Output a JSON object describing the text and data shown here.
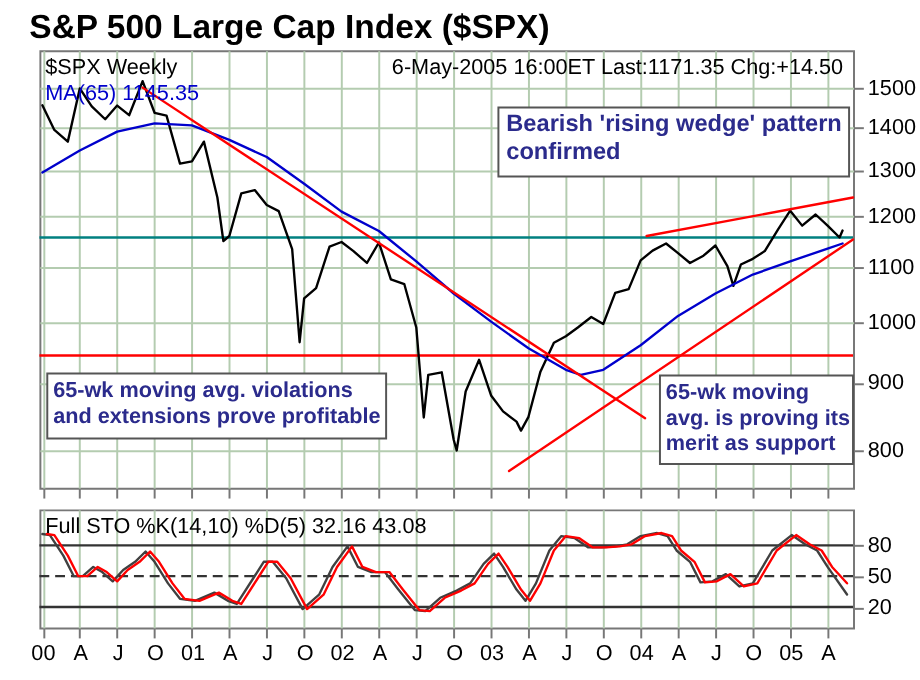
{
  "chart_data": [
    {
      "type": "line",
      "title": "S&P 500 Large Cap Index ($SPX)",
      "subtitle": "$SPX Weekly",
      "annotations": [
        "6-May-2005 16:00ET Last:1171.35 Chg:+14.50",
        "Bearish 'rising wedge' pattern\nconfirmed",
        "65-wk moving avg. violations\nand extensions prove profitable",
        "65-wk moving\navg. is proving its\nmerit as support"
      ],
      "xlim": [
        1999.98,
        2005.42
      ],
      "xticks": [
        {
          "value": 2000,
          "label": null
        },
        {
          "value": 2000.25,
          "label": null
        },
        {
          "value": 2000.5,
          "label": null
        },
        {
          "value": 2000.75,
          "label": null
        },
        {
          "value": 2001,
          "label": null
        },
        {
          "value": 2001.25,
          "label": null
        },
        {
          "value": 2001.5,
          "label": null
        },
        {
          "value": 2001.75,
          "label": null
        },
        {
          "value": 2002,
          "label": null
        },
        {
          "value": 2002.25,
          "label": null
        },
        {
          "value": 2002.5,
          "label": null
        },
        {
          "value": 2002.75,
          "label": null
        },
        {
          "value": 2003,
          "label": null
        },
        {
          "value": 2003.25,
          "label": null
        },
        {
          "value": 2003.5,
          "label": null
        },
        {
          "value": 2003.75,
          "label": null
        },
        {
          "value": 2004,
          "label": null
        },
        {
          "value": 2004.25,
          "label": null
        },
        {
          "value": 2004.5,
          "label": null
        },
        {
          "value": 2004.75,
          "label": null
        },
        {
          "value": 2005,
          "label": null
        },
        {
          "value": 2005.25,
          "label": null
        }
      ],
      "ylim": [
        750,
        1600
      ],
      "yticks": [
        800,
        900,
        1000,
        1100,
        1200,
        1300,
        1400,
        1500
      ],
      "log": true,
      "grid": true,
      "tick_labels": "y",
      "ref_lines": [
        {
          "axis": "y",
          "value": 1157,
          "color": "#008080"
        },
        {
          "axis": "y",
          "value": 943,
          "color": "#ff0000"
        }
      ],
      "series": [
        {
          "color": "#000000",
          "x": [
            2000.0,
            2000.08,
            2000.17,
            2000.25,
            2000.33,
            2000.42,
            2000.5,
            2000.58,
            2000.67,
            2000.75,
            2000.83,
            2000.92,
            2001.0,
            2001.08,
            2001.17,
            2001.21,
            2001.25,
            2001.33,
            2001.42,
            2001.5,
            2001.58,
            2001.67,
            2001.72,
            2001.75,
            2001.83,
            2001.92,
            2002.0,
            2002.08,
            2002.17,
            2002.25,
            2002.33,
            2002.42,
            2002.5,
            2002.55,
            2002.58,
            2002.67,
            2002.75,
            2002.77,
            2002.83,
            2002.92,
            2003.0,
            2003.08,
            2003.17,
            2003.2,
            2003.25,
            2003.33,
            2003.42,
            2003.5,
            2003.58,
            2003.67,
            2003.75,
            2003.83,
            2003.92,
            2004.0,
            2004.08,
            2004.17,
            2004.25,
            2004.33,
            2004.42,
            2004.5,
            2004.58,
            2004.62,
            2004.67,
            2004.75,
            2004.83,
            2004.92,
            2005.0,
            2005.08,
            2005.17,
            2005.25,
            2005.33,
            2005.35
          ],
          "values": [
            1455,
            1394,
            1366,
            1498,
            1452,
            1420,
            1454,
            1430,
            1517,
            1436,
            1429,
            1315,
            1320,
            1366,
            1240,
            1150,
            1160,
            1249,
            1256,
            1224,
            1211,
            1134,
            965,
            1041,
            1060,
            1139,
            1148,
            1130,
            1107,
            1147,
            1076,
            1067,
            990,
            847,
            912,
            916,
            815,
            800,
            886,
            936,
            880,
            856,
            841,
            828,
            848,
            917,
            964,
            975,
            990,
            1008,
            996,
            1051,
            1058,
            1112,
            1131,
            1145,
            1126,
            1107,
            1121,
            1141,
            1101,
            1064,
            1104,
            1115,
            1130,
            1174,
            1212,
            1181,
            1204,
            1181,
            1157,
            1171
          ]
        },
        {
          "name": "MA(65) 1145.35",
          "color": "#0000cc",
          "x": [
            2000.0,
            2000.25,
            2000.5,
            2000.75,
            2001.0,
            2001.25,
            2001.5,
            2001.75,
            2002.0,
            2002.25,
            2002.5,
            2002.75,
            2003.0,
            2003.25,
            2003.5,
            2003.6,
            2003.75,
            2004.0,
            2004.25,
            2004.5,
            2004.75,
            2005.0,
            2005.25,
            2005.35
          ],
          "values": [
            1295,
            1345,
            1390,
            1410,
            1405,
            1370,
            1330,
            1270,
            1210,
            1170,
            1110,
            1050,
            1000,
            955,
            920,
            912,
            920,
            960,
            1010,
            1050,
            1085,
            1110,
            1135,
            1145
          ]
        },
        {
          "color": "#ff0000",
          "x": [
            2000.67,
            2004.03
          ],
          "values": [
            1500,
            846
          ]
        },
        {
          "color": "#ff0000",
          "x": [
            2003.12,
            2005.42
          ],
          "values": [
            772,
            1153
          ]
        },
        {
          "color": "#ff0000",
          "x": [
            2004.04,
            2005.42
          ],
          "values": [
            1160,
            1240
          ]
        }
      ]
    },
    {
      "type": "line",
      "title": "Full STO %K(14,10) %D(5) 32.16 43.08",
      "xlim": [
        1999.98,
        2005.42
      ],
      "xticks": [
        {
          "value": 2000,
          "label": "00"
        },
        {
          "value": 2000.25,
          "label": "A"
        },
        {
          "value": 2000.5,
          "label": "J"
        },
        {
          "value": 2000.75,
          "label": "O"
        },
        {
          "value": 2001,
          "label": "01"
        },
        {
          "value": 2001.25,
          "label": "A"
        },
        {
          "value": 2001.5,
          "label": "J"
        },
        {
          "value": 2001.75,
          "label": "O"
        },
        {
          "value": 2002,
          "label": "02"
        },
        {
          "value": 2002.25,
          "label": "A"
        },
        {
          "value": 2002.5,
          "label": "J"
        },
        {
          "value": 2002.75,
          "label": "O"
        },
        {
          "value": 2003,
          "label": "03"
        },
        {
          "value": 2003.25,
          "label": "A"
        },
        {
          "value": 2003.5,
          "label": "J"
        },
        {
          "value": 2003.75,
          "label": "O"
        },
        {
          "value": 2004,
          "label": "04"
        },
        {
          "value": 2004.25,
          "label": "A"
        },
        {
          "value": 2004.5,
          "label": "J"
        },
        {
          "value": 2004.75,
          "label": "O"
        },
        {
          "value": 2005,
          "label": "05"
        },
        {
          "value": 2005.25,
          "label": "A"
        }
      ],
      "ylim": [
        0,
        115
      ],
      "yticks": [
        20,
        50,
        80
      ],
      "grid": "x",
      "ref_lines": [
        {
          "axis": "y",
          "value": 80,
          "color": "#333333",
          "line_style": "solid"
        },
        {
          "axis": "y",
          "value": 50,
          "color": "#333333",
          "line_style": "dashed"
        },
        {
          "axis": "y",
          "value": 20,
          "color": "#333333",
          "line_style": "solid"
        }
      ],
      "series": [
        {
          "color": "#404040",
          "x": [
            2000.0,
            2000.05,
            2000.14,
            2000.21,
            2000.27,
            2000.34,
            2000.4,
            2000.47,
            2000.54,
            2000.62,
            2000.69,
            2000.75,
            2000.84,
            2000.92,
            2001.02,
            2001.15,
            2001.24,
            2001.3,
            2001.41,
            2001.48,
            2001.54,
            2001.63,
            2001.74,
            2001.85,
            2001.94,
            2002.04,
            2002.11,
            2002.2,
            2002.29,
            2002.38,
            2002.49,
            2002.56,
            2002.66,
            2002.77,
            2002.86,
            2002.95,
            2003.02,
            2003.08,
            2003.17,
            2003.23,
            2003.3,
            2003.39,
            2003.47,
            2003.56,
            2003.65,
            2003.74,
            2003.83,
            2003.91,
            2004.0,
            2004.11,
            2004.18,
            2004.24,
            2004.33,
            2004.4,
            2004.48,
            2004.57,
            2004.66,
            2004.75,
            2004.88,
            2005.01,
            2005.1,
            2005.18,
            2005.25,
            2005.38
          ],
          "values": [
            91,
            90,
            70,
            50,
            50,
            59,
            54,
            45,
            56,
            64,
            74,
            64,
            43,
            28,
            26,
            34,
            26,
            23,
            48,
            64,
            64,
            48,
            18,
            32,
            59,
            79,
            59,
            54,
            54,
            37,
            17,
            16,
            29,
            36,
            43,
            62,
            72,
            59,
            37,
            26,
            43,
            75,
            89,
            87,
            78,
            78,
            79,
            81,
            89,
            92,
            89,
            75,
            64,
            44,
            45,
            52,
            40,
            43,
            75,
            90,
            81,
            75,
            59,
            32.16
          ]
        },
        {
          "color": "#ff0000",
          "x": [
            2000.03,
            2000.08,
            2000.17,
            2000.24,
            2000.3,
            2000.37,
            2000.43,
            2000.5,
            2000.57,
            2000.65,
            2000.72,
            2000.78,
            2000.87,
            2000.95,
            2001.05,
            2001.18,
            2001.27,
            2001.33,
            2001.44,
            2001.51,
            2001.57,
            2001.66,
            2001.77,
            2001.88,
            2001.97,
            2002.07,
            2002.14,
            2002.23,
            2002.32,
            2002.41,
            2002.52,
            2002.59,
            2002.69,
            2002.8,
            2002.89,
            2002.98,
            2003.05,
            2003.11,
            2003.2,
            2003.26,
            2003.33,
            2003.42,
            2003.5,
            2003.59,
            2003.68,
            2003.77,
            2003.86,
            2003.94,
            2004.03,
            2004.14,
            2004.21,
            2004.27,
            2004.36,
            2004.43,
            2004.51,
            2004.6,
            2004.69,
            2004.78,
            2004.91,
            2005.04,
            2005.13,
            2005.21,
            2005.28,
            2005.38
          ],
          "values": [
            91,
            90,
            70,
            50,
            50,
            59,
            54,
            45,
            56,
            64,
            74,
            64,
            43,
            28,
            26,
            34,
            26,
            23,
            48,
            64,
            64,
            48,
            18,
            32,
            59,
            79,
            59,
            54,
            54,
            37,
            17,
            16,
            29,
            36,
            43,
            62,
            72,
            59,
            37,
            26,
            43,
            75,
            89,
            87,
            78,
            78,
            79,
            81,
            89,
            92,
            89,
            75,
            64,
            44,
            45,
            52,
            40,
            43,
            75,
            90,
            81,
            75,
            59,
            43.08
          ]
        }
      ]
    }
  ]
}
